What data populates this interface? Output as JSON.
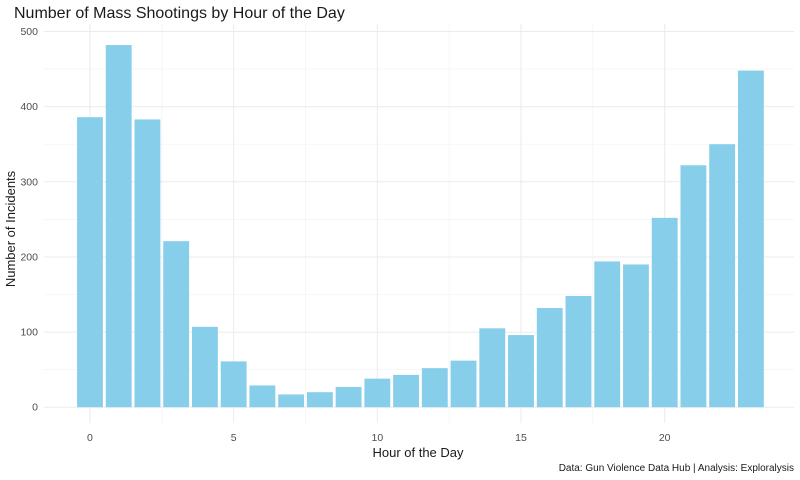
{
  "chart_data": {
    "type": "bar",
    "title": "Number of Mass Shootings by Hour of the Day",
    "xlabel": "Hour of the Day",
    "ylabel": "Number of Incidents",
    "caption": "Data: Gun Violence Data Hub | Analysis: Exploralysis",
    "x": [
      0,
      1,
      2,
      3,
      4,
      5,
      6,
      7,
      8,
      9,
      10,
      11,
      12,
      13,
      14,
      15,
      16,
      17,
      18,
      19,
      20,
      21,
      22,
      23
    ],
    "values": [
      386,
      482,
      383,
      221,
      107,
      61,
      29,
      17,
      20,
      27,
      38,
      43,
      52,
      62,
      105,
      96,
      132,
      148,
      194,
      190,
      252,
      322,
      350,
      448
    ],
    "xlim": [
      -1.6,
      24.5
    ],
    "ylim": [
      -21,
      510
    ],
    "x_ticks": [
      0,
      5,
      10,
      15,
      20
    ],
    "y_ticks": [
      0,
      100,
      200,
      300,
      400,
      500
    ],
    "bar_color": "#87CEEB",
    "grid": true,
    "legend": "none"
  }
}
